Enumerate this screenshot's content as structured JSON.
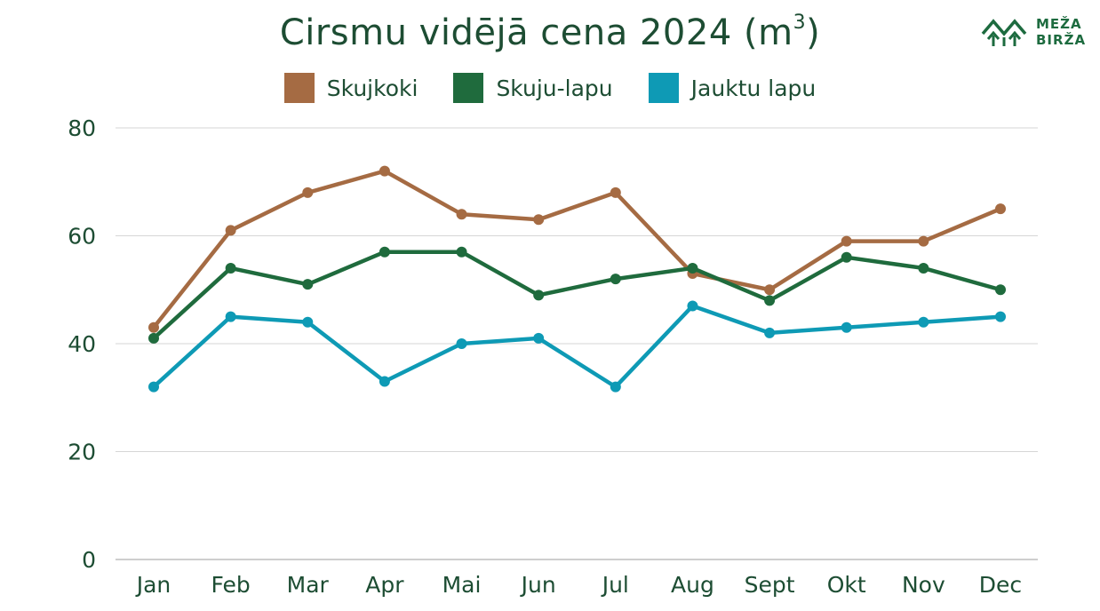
{
  "title": {
    "main": "Cirsmu vidējā cena 2024 (m",
    "superscript": "3",
    "close": ")"
  },
  "logo": {
    "line1": "MEŽA",
    "line2": "BIRŽA",
    "color": "#1d6b3f"
  },
  "chart_data": {
    "type": "line",
    "categories": [
      "Jan",
      "Feb",
      "Mar",
      "Apr",
      "Mai",
      "Jun",
      "Jul",
      "Aug",
      "Sept",
      "Okt",
      "Nov",
      "Dec"
    ],
    "series": [
      {
        "name": "Skujkoki",
        "color": "#a56b43",
        "values": [
          43,
          61,
          68,
          72,
          64,
          63,
          68,
          53,
          50,
          59,
          59,
          65
        ]
      },
      {
        "name": "Skuju-lapu",
        "color": "#1f6b3d",
        "values": [
          41,
          54,
          51,
          57,
          57,
          49,
          52,
          54,
          48,
          56,
          54,
          50
        ]
      },
      {
        "name": "Jauktu lapu",
        "color": "#0e9ab5",
        "values": [
          32,
          45,
          44,
          33,
          40,
          41,
          32,
          47,
          42,
          43,
          44,
          45
        ]
      }
    ],
    "yticks": [
      0,
      20,
      40,
      60,
      80
    ],
    "ylim": [
      0,
      80
    ],
    "grid": true,
    "legend_position": "top-center"
  }
}
